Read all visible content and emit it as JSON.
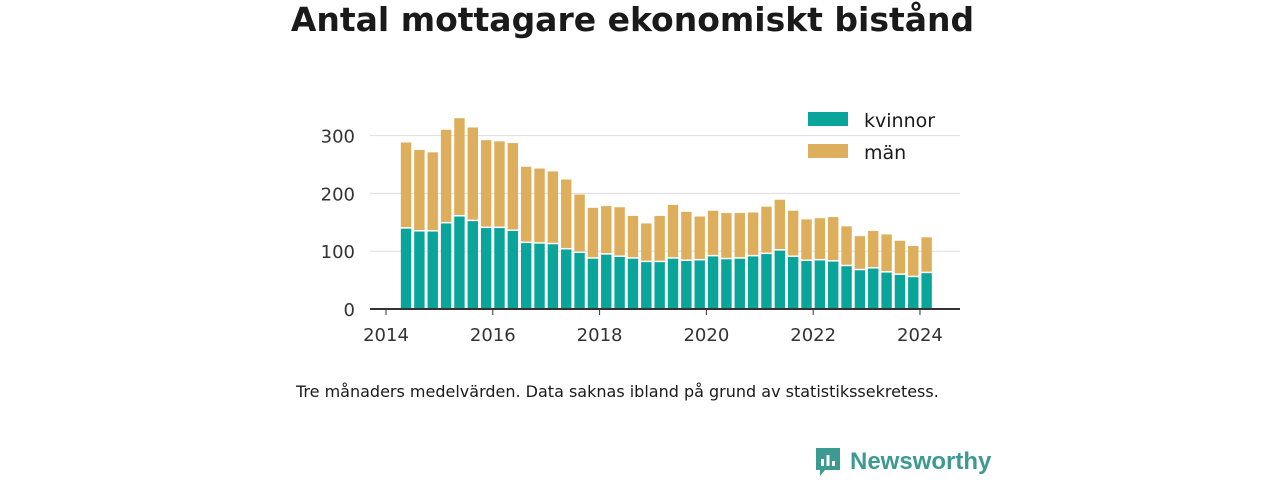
{
  "title": "Antal mottagare ekonomiskt bistånd",
  "note": "Tre månaders medelvärden. Data saknas ibland på grund av statistikssekretess.",
  "brand": {
    "name": "Newsworthy",
    "icon": "newsworthy-logo-icon",
    "color": "#3d9a92"
  },
  "chart_data": {
    "type": "bar",
    "stacked": true,
    "x": [
      2014.375,
      2014.625,
      2014.875,
      2015.125,
      2015.375,
      2015.625,
      2015.875,
      2016.125,
      2016.375,
      2016.625,
      2016.875,
      2017.125,
      2017.375,
      2017.625,
      2017.875,
      2018.125,
      2018.375,
      2018.625,
      2018.875,
      2019.125,
      2019.375,
      2019.625,
      2019.875,
      2020.125,
      2020.375,
      2020.625,
      2020.875,
      2021.125,
      2021.375,
      2021.625,
      2021.875,
      2022.125,
      2022.375,
      2022.625,
      2022.875,
      2023.125,
      2023.375,
      2023.625,
      2023.875,
      2024.125
    ],
    "series": [
      {
        "name": "kvinnor",
        "color": "#0aa59a",
        "values": [
          139,
          134,
          134,
          148,
          160,
          152,
          140,
          140,
          135,
          114,
          113,
          112,
          103,
          97,
          87,
          94,
          90,
          87,
          81,
          81,
          87,
          83,
          84,
          91,
          86,
          87,
          91,
          95,
          101,
          90,
          83,
          84,
          82,
          74,
          67,
          70,
          63,
          59,
          55,
          62
        ]
      },
      {
        "name": "män",
        "color": "#ddae5b",
        "values": [
          149,
          141,
          137,
          162,
          170,
          162,
          152,
          150,
          152,
          132,
          130,
          126,
          121,
          101,
          88,
          84,
          86,
          74,
          67,
          80,
          93,
          85,
          76,
          79,
          80,
          79,
          76,
          82,
          88,
          80,
          72,
          73,
          77,
          69,
          59,
          65,
          66,
          59,
          54,
          62
        ]
      }
    ],
    "xlim": [
      2013.7,
      2024.75
    ],
    "ylim": [
      0,
      320
    ],
    "xticks": [
      "2014",
      "2016",
      "2018",
      "2020",
      "2022",
      "2024"
    ],
    "xtick_values": [
      2014,
      2016,
      2018,
      2020,
      2022,
      2024
    ],
    "yticks": [
      "0",
      "100",
      "200",
      "300"
    ],
    "ytick_values": [
      0,
      100,
      200,
      300
    ],
    "grid": "horizontal",
    "legend_position": "top-right"
  }
}
